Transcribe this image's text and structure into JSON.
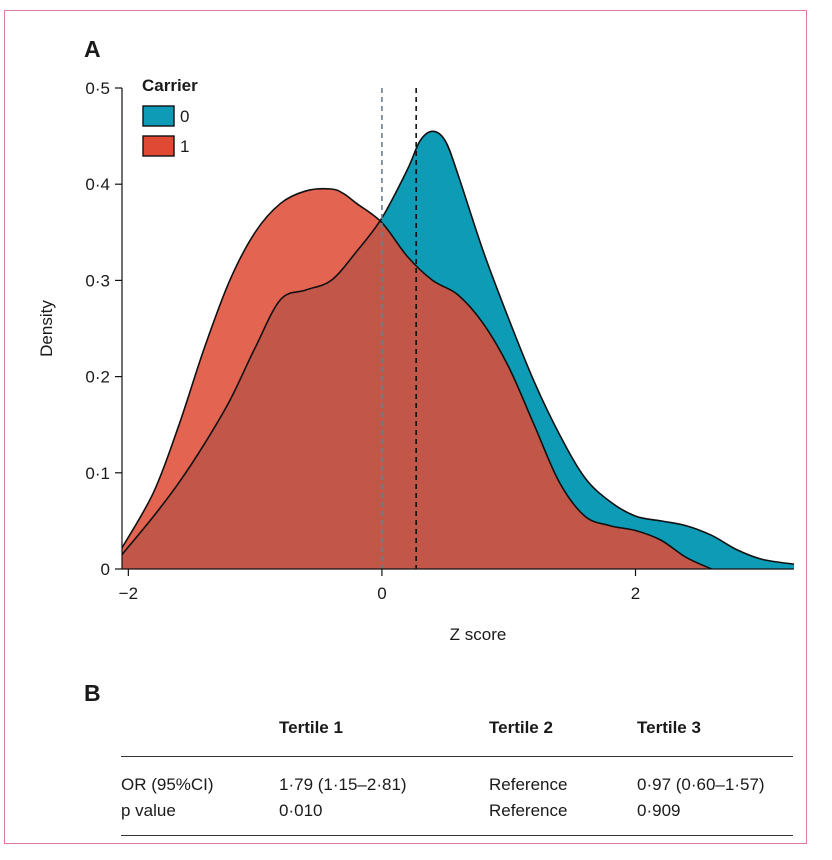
{
  "panels": {
    "a_label": "A",
    "b_label": "B"
  },
  "chart_data": {
    "type": "area",
    "title": "",
    "xlabel": "Z score",
    "ylabel": "Density",
    "xlim": [
      -2.05,
      3.25
    ],
    "ylim": [
      0,
      0.5
    ],
    "x_ticks": [
      -2,
      0,
      2
    ],
    "x_tick_labels": [
      "−2",
      "0",
      "2"
    ],
    "y_ticks": [
      0,
      0.1,
      0.2,
      0.3,
      0.4,
      0.5
    ],
    "y_tick_labels": [
      "0",
      "0·1",
      "0·2",
      "0·3",
      "0·4",
      "0·5"
    ],
    "legend": {
      "title": "Carrier",
      "position": "top-left"
    },
    "series": [
      {
        "name": "0",
        "color": "#0e9bb5",
        "x": [
          -2.05,
          -1.8,
          -1.6,
          -1.4,
          -1.2,
          -1.0,
          -0.8,
          -0.6,
          -0.4,
          -0.2,
          0.0,
          0.2,
          0.3,
          0.4,
          0.5,
          0.6,
          0.8,
          1.0,
          1.2,
          1.4,
          1.6,
          1.8,
          2.0,
          2.2,
          2.4,
          2.6,
          2.8,
          3.0,
          3.25
        ],
        "y": [
          0.015,
          0.055,
          0.09,
          0.13,
          0.175,
          0.23,
          0.28,
          0.29,
          0.3,
          0.33,
          0.365,
          0.415,
          0.445,
          0.455,
          0.445,
          0.41,
          0.33,
          0.26,
          0.195,
          0.14,
          0.095,
          0.07,
          0.055,
          0.05,
          0.045,
          0.035,
          0.02,
          0.01,
          0.005
        ]
      },
      {
        "name": "1",
        "color": "#e04a35",
        "x": [
          -2.05,
          -1.8,
          -1.6,
          -1.4,
          -1.2,
          -1.0,
          -0.8,
          -0.6,
          -0.4,
          -0.3,
          -0.2,
          0.0,
          0.2,
          0.4,
          0.6,
          0.8,
          1.0,
          1.2,
          1.4,
          1.6,
          1.8,
          2.0,
          2.2,
          2.4,
          2.6
        ],
        "y": [
          0.022,
          0.08,
          0.15,
          0.23,
          0.3,
          0.35,
          0.38,
          0.393,
          0.395,
          0.39,
          0.38,
          0.36,
          0.325,
          0.3,
          0.285,
          0.255,
          0.21,
          0.15,
          0.09,
          0.055,
          0.045,
          0.04,
          0.03,
          0.012,
          0.0
        ]
      }
    ],
    "reference_lines": [
      {
        "x": 0.0,
        "style": "dashed",
        "color": "#6a7f8c"
      },
      {
        "x": 0.27,
        "style": "dashed",
        "color": "#111111"
      }
    ]
  },
  "table": {
    "headers": [
      "",
      "Tertile 1",
      "Tertile 2",
      "Tertile 3"
    ],
    "rows": [
      [
        "OR (95%CI)",
        "1·79 (1·15–2·81)",
        "Reference",
        "0·97 (0·60–1·57)"
      ],
      [
        "p value",
        "0·010",
        "Reference",
        "0·909"
      ]
    ]
  }
}
